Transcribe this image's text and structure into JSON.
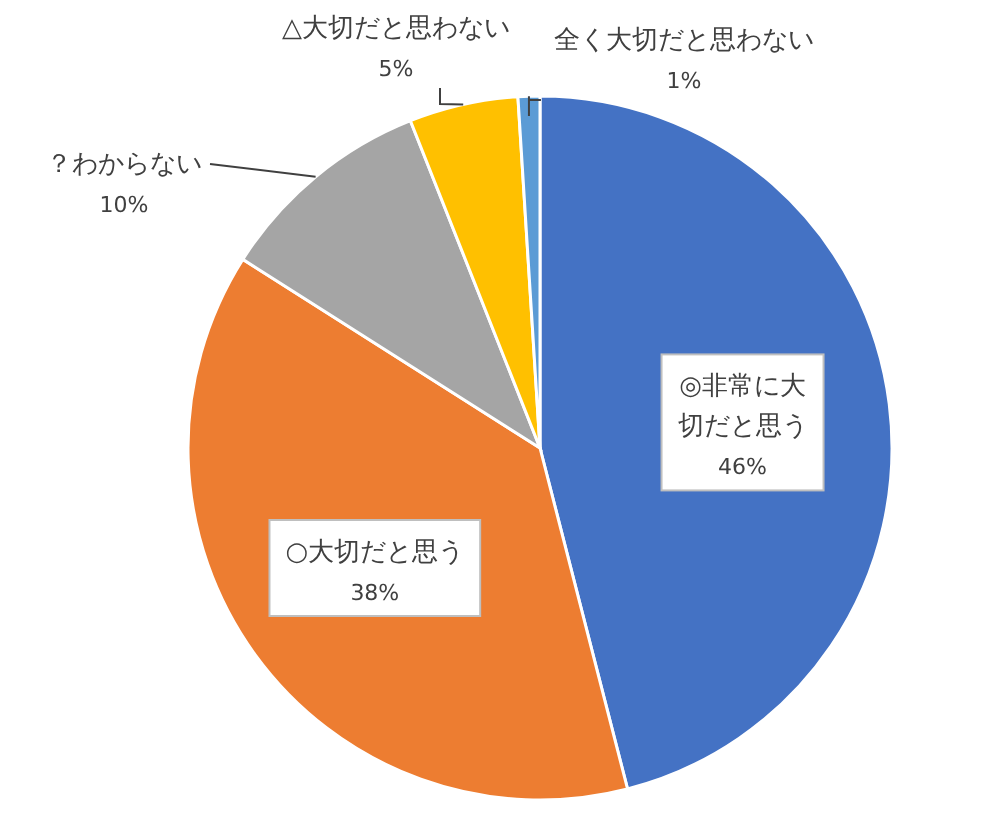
{
  "chart_data": {
    "type": "pie",
    "categories": [
      "◎非常に大切だと思う",
      "○大切だと思う",
      "？わからない",
      "△大切だと思わない",
      "全く大切だと思わない"
    ],
    "values": [
      46,
      38,
      10,
      5,
      1
    ],
    "colors": [
      "#4472c4",
      "#ed7d31",
      "#a5a5a5",
      "#ffc000",
      "#5b9bd5"
    ],
    "value_labels": [
      "46%",
      "38%",
      "10%",
      "5%",
      "1%"
    ],
    "legend": false
  }
}
